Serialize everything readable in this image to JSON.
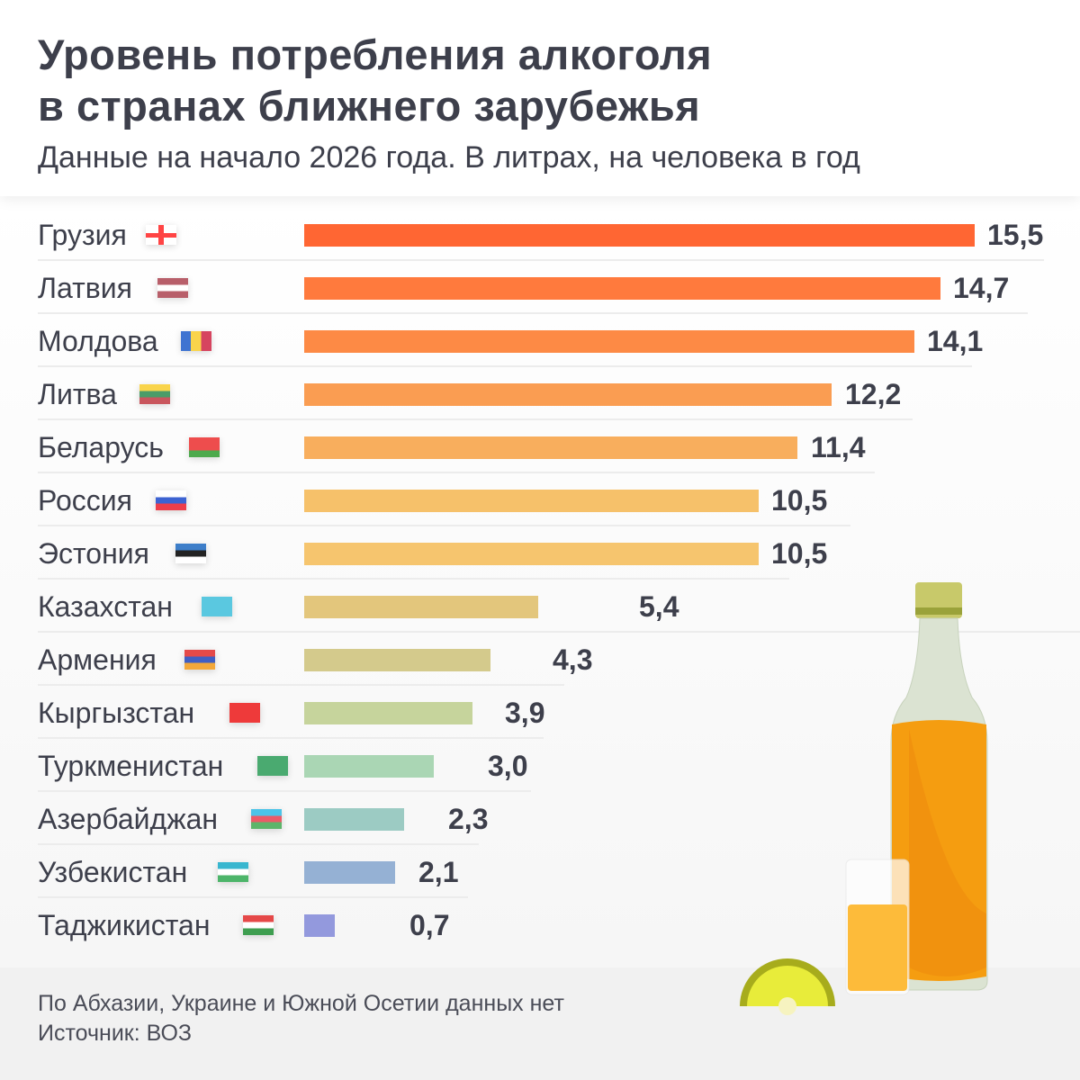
{
  "header": {
    "title_line1": "Уровень потребления алкоголя",
    "title_line2": "в странах ближнего зарубежья",
    "subtitle": "Данные на начало 2026 года. В литрах, на человека в год"
  },
  "chart_data": {
    "type": "bar",
    "orientation": "horizontal",
    "categories": [
      "Грузия",
      "Латвия",
      "Молдова",
      "Литва",
      "Беларусь",
      "Россия",
      "Эстония",
      "Казахстан",
      "Армения",
      "Кыргызстан",
      "Туркменистан",
      "Азербайджан",
      "Узбекистан",
      "Таджикистан"
    ],
    "values": [
      15.5,
      14.7,
      14.1,
      12.2,
      11.4,
      10.5,
      10.5,
      5.4,
      4.3,
      3.9,
      3.0,
      2.3,
      2.1,
      0.7
    ],
    "value_labels": [
      "15,5",
      "14,7",
      "14,1",
      "12,2",
      "11,4",
      "10,5",
      "10,5",
      "5,4",
      "4,3",
      "3,9",
      "3,0",
      "2,3",
      "2,1",
      "0,7"
    ],
    "bar_colors": [
      "#ff6633",
      "#ff7a3d",
      "#fd8a45",
      "#fa9d52",
      "#f8ae5d",
      "#f6c16a",
      "#f6c56e",
      "#e3c67c",
      "#d4ca8c",
      "#c6d49c",
      "#aad6b4",
      "#9ccbc3",
      "#95b1d4",
      "#9399dd"
    ],
    "flags": [
      {
        "icon": "georgia-flag-icon",
        "colors": [
          "#ffffff",
          "#ff4444"
        ]
      },
      {
        "icon": "latvia-flag-icon",
        "colors": [
          "#b85f6a",
          "#ffffff",
          "#b85f6a"
        ]
      },
      {
        "icon": "moldova-flag-icon",
        "colors": [
          "#3f74d1",
          "#f9d44b",
          "#d6445f"
        ]
      },
      {
        "icon": "lithuania-flag-icon",
        "colors": [
          "#f9d44b",
          "#4a9c68",
          "#c9565d"
        ]
      },
      {
        "icon": "belarus-flag-icon",
        "colors": [
          "#ee4d4d",
          "#ee4d4d",
          "#4daa4d"
        ]
      },
      {
        "icon": "russia-flag-icon",
        "colors": [
          "#ffffff",
          "#3d63d2",
          "#ee3e4a"
        ]
      },
      {
        "icon": "estonia-flag-icon",
        "colors": [
          "#3d7ec9",
          "#222222",
          "#ffffff"
        ]
      },
      {
        "icon": "kazakhstan-flag-icon",
        "colors": [
          "#5ac8e0",
          "#5ac8e0",
          "#5ac8e0"
        ]
      },
      {
        "icon": "armenia-flag-icon",
        "colors": [
          "#e44a4a",
          "#3f5fc4",
          "#f3a83a"
        ]
      },
      {
        "icon": "kyrgyzstan-flag-icon",
        "colors": [
          "#ee3a3a",
          "#ee3a3a",
          "#ee3a3a"
        ]
      },
      {
        "icon": "turkmenistan-flag-icon",
        "colors": [
          "#4aaa70",
          "#4aaa70",
          "#4aaa70"
        ]
      },
      {
        "icon": "azerbaijan-flag-icon",
        "colors": [
          "#4cc4e8",
          "#ec5a68",
          "#5cb56a"
        ]
      },
      {
        "icon": "uzbekistan-flag-icon",
        "colors": [
          "#38b6cf",
          "#ffffff",
          "#4db56a"
        ]
      },
      {
        "icon": "tajikistan-flag-icon",
        "colors": [
          "#e54848",
          "#ffffff",
          "#3e9e50"
        ]
      }
    ],
    "xlim": [
      0,
      15.5
    ],
    "grid": false
  },
  "footer": {
    "note": "По Абхазии, Украине и Южной Осетии данных нет",
    "source": "Источник: ВОЗ"
  }
}
